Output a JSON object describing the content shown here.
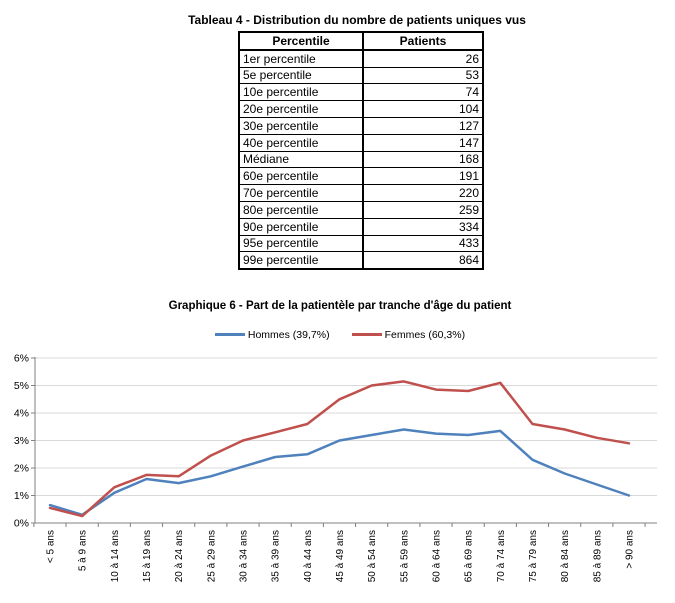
{
  "table_section": {
    "title": "Tableau 4 - Distribution du nombre de patients uniques vus",
    "columns": [
      "Percentile",
      "Patients"
    ],
    "rows": [
      [
        "1er percentile",
        "26"
      ],
      [
        "5e percentile",
        "53"
      ],
      [
        "10e percentile",
        "74"
      ],
      [
        "20e percentile",
        "104"
      ],
      [
        "30e percentile",
        "127"
      ],
      [
        "40e percentile",
        "147"
      ],
      [
        "Médiane",
        "168"
      ],
      [
        "60e percentile",
        "191"
      ],
      [
        "70e percentile",
        "220"
      ],
      [
        "80e percentile",
        "259"
      ],
      [
        "90e percentile",
        "334"
      ],
      [
        "95e percentile",
        "433"
      ],
      [
        "99e percentile",
        "864"
      ]
    ]
  },
  "chart_section": {
    "title": "Graphique 6 - Part de la patientèle par tranche d'âge du patient",
    "legend": [
      {
        "label": "Hommes (39,7%)",
        "color": "#4F81BD"
      },
      {
        "label": "Femmes (60,3%)",
        "color": "#C0504D"
      }
    ],
    "grid_color": "#D9D9D9",
    "axis_color": "#808080"
  },
  "chart_data": [
    {
      "type": "table",
      "title": "Tableau 4 - Distribution du nombre de patients uniques vus",
      "columns": [
        "Percentile",
        "Patients"
      ],
      "rows": [
        [
          "1er percentile",
          26
        ],
        [
          "5e percentile",
          53
        ],
        [
          "10e percentile",
          74
        ],
        [
          "20e percentile",
          104
        ],
        [
          "30e percentile",
          127
        ],
        [
          "40e percentile",
          147
        ],
        [
          "Médiane",
          168
        ],
        [
          "60e percentile",
          191
        ],
        [
          "70e percentile",
          220
        ],
        [
          "80e percentile",
          259
        ],
        [
          "90e percentile",
          334
        ],
        [
          "95e percentile",
          433
        ],
        [
          "99e percentile",
          864
        ]
      ]
    },
    {
      "type": "line",
      "title": "Graphique 6 - Part de la patientèle par tranche d'âge du patient",
      "categories": [
        "< 5 ans",
        "5 à 9 ans",
        "10 à 14 ans",
        "15 à 19 ans",
        "20 à 24 ans",
        "25 à 29 ans",
        "30 à 34 ans",
        "35 à 39 ans",
        "40 à 44 ans",
        "45 à 49 ans",
        "50 à 54 ans",
        "55 à 59 ans",
        "60 à 64 ans",
        "65 à 69 ans",
        "70 à 74 ans",
        "75 à 79 ans",
        "80 à 84 ans",
        "85 à 89 ans",
        "> 90 ans"
      ],
      "series": [
        {
          "name": "Hommes (39,7%)",
          "color": "#4F81BD",
          "values": [
            0.65,
            0.3,
            1.1,
            1.6,
            1.45,
            1.7,
            2.05,
            2.4,
            2.5,
            3.0,
            3.2,
            3.4,
            3.25,
            3.2,
            3.35,
            2.3,
            1.8,
            1.4,
            1.0
          ]
        },
        {
          "name": "Femmes (60,3%)",
          "color": "#C0504D",
          "values": [
            0.55,
            0.25,
            1.3,
            1.75,
            1.7,
            2.45,
            3.0,
            3.3,
            3.6,
            4.5,
            5.0,
            5.15,
            4.85,
            4.8,
            5.1,
            3.6,
            3.4,
            3.1,
            2.9
          ]
        }
      ],
      "ylim": [
        0,
        6
      ],
      "ytick_labels": [
        "0%",
        "1%",
        "2%",
        "3%",
        "4%",
        "5%",
        "6%"
      ],
      "grid": true,
      "legend_position": "top"
    }
  ]
}
